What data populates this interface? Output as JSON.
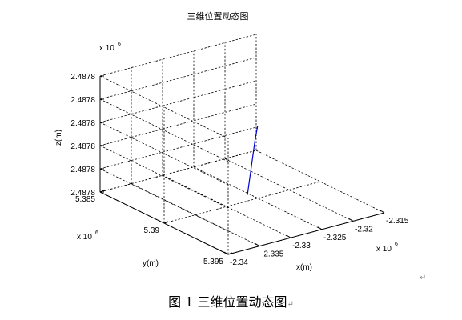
{
  "chart_data": {
    "type": "line",
    "title": "三维位置动态图",
    "xlabel": "x(m)",
    "ylabel": "y(m)",
    "zlabel": "z(m)",
    "x_multiplier": {
      "base": "x 10",
      "exp": "6"
    },
    "y_multiplier": {
      "base": "x 10",
      "exp": "6"
    },
    "z_multiplier": {
      "base": "x 10",
      "exp": "6"
    },
    "xlim": [
      -2.34,
      -2.315
    ],
    "ylim": [
      5.385,
      5.395
    ],
    "zlim": [
      0,
      5
    ],
    "x_ticks": [
      {
        "value": -2.34,
        "label": "-2.34"
      },
      {
        "value": -2.335,
        "label": "-2.335"
      },
      {
        "value": -2.33,
        "label": "-2.33"
      },
      {
        "value": -2.325,
        "label": "-2.325"
      },
      {
        "value": -2.32,
        "label": "-2.32"
      },
      {
        "value": -2.315,
        "label": "-2.315"
      }
    ],
    "y_ticks": [
      {
        "value": 5.395,
        "label": "5.395"
      },
      {
        "value": 5.39,
        "label": "5.39"
      },
      {
        "value": 5.385,
        "label": "5.385"
      }
    ],
    "z_ticks": [
      {
        "value": 0,
        "label": "2.4878"
      },
      {
        "value": 1,
        "label": "2.4878"
      },
      {
        "value": 2,
        "label": "2.4878"
      },
      {
        "value": 3,
        "label": "2.4878"
      },
      {
        "value": 4,
        "label": "2.4878"
      },
      {
        "value": 5,
        "label": "2.4878"
      }
    ],
    "grid": true,
    "series": [
      {
        "color": "#0000cc",
        "points": [
          {
            "x": -2.3283,
            "y": 5.3908,
            "z": 0.6
          },
          {
            "x": -2.3281,
            "y": 5.3909,
            "z": 1.4
          },
          {
            "x": -2.3279,
            "y": 5.391,
            "z": 2.2
          },
          {
            "x": -2.3277,
            "y": 5.3911,
            "z": 3.0
          },
          {
            "x": -2.3275,
            "y": 5.3912,
            "z": 3.6
          }
        ]
      }
    ]
  },
  "caption": {
    "text": "图 1  三维位置动态图",
    "mark": "↵"
  },
  "paragraph_mark": "↵"
}
